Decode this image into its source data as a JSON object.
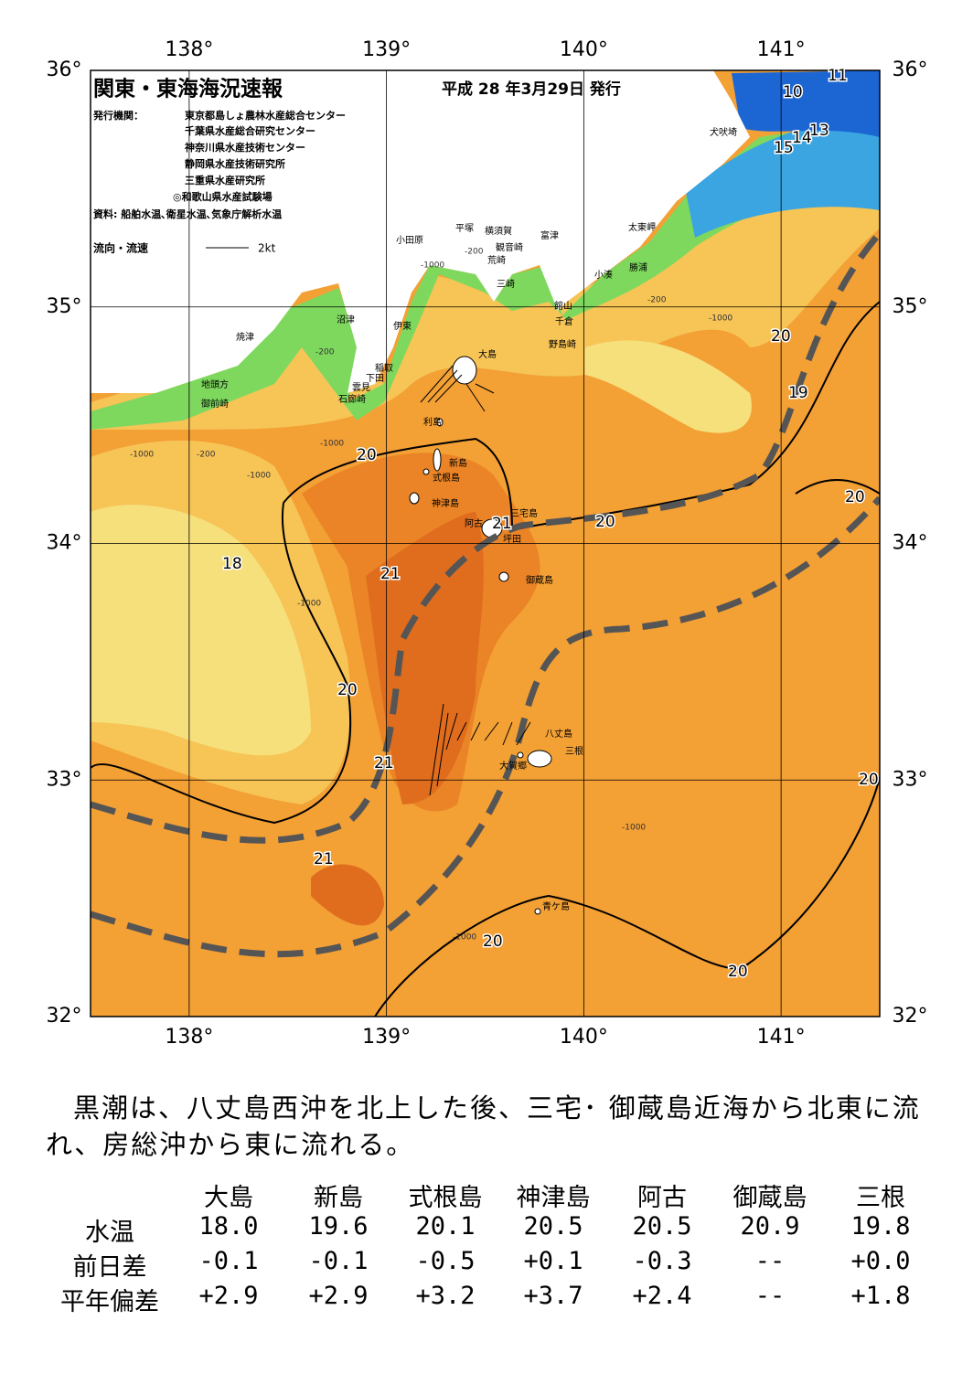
{
  "header": {
    "title": "関東・東海海況速報",
    "date": "平成 28 年3月29日 発行",
    "issuer_label": "発行機関：",
    "issuers": [
      "東京都島しょ農林水産総合センター",
      "千葉県水産総合研究センター",
      "神奈川県水産技術センター",
      "静岡県水産技術研究所",
      "三重県水産研究所",
      "◎和歌山県水産試験場"
    ],
    "source": "資料: 船舶水温､衛星水温､気象庁解析水温",
    "legend_label": "流向・流速",
    "legend_speed": "2kt"
  },
  "map": {
    "lonlim": [
      137.5,
      141.5
    ],
    "latlim": [
      32,
      36
    ],
    "lon_ticks": [
      {
        "value": 138,
        "label": "138°"
      },
      {
        "value": 139,
        "label": "139°"
      },
      {
        "value": 140,
        "label": "140°"
      },
      {
        "value": 141,
        "label": "141°"
      }
    ],
    "lat_ticks": [
      {
        "value": 32,
        "label": "32°"
      },
      {
        "value": 33,
        "label": "33°"
      },
      {
        "value": 34,
        "label": "34°"
      },
      {
        "value": 35,
        "label": "35°"
      },
      {
        "value": 36,
        "label": "36°"
      }
    ],
    "isotherm_labels": [
      "10",
      "11",
      "13",
      "14",
      "15",
      "20",
      "19",
      "20",
      "20",
      "21",
      "20",
      "18",
      "21",
      "20",
      "21",
      "20",
      "21",
      "20",
      "20"
    ],
    "depth_labels": [
      "-200",
      "-1000",
      "-200",
      "-1000",
      "-200",
      "-1000",
      "-1000",
      "-200",
      "-1000",
      "-1000",
      "-1000",
      "-1000"
    ],
    "places": [
      "犬吠埼",
      "太東岬",
      "勝浦",
      "小湊",
      "富津",
      "横須賀",
      "平塚",
      "観音崎",
      "荒崎",
      "小田原",
      "三崎",
      "館山",
      "千倉",
      "野島崎",
      "沼津",
      "伊東",
      "焼津",
      "稲取",
      "下田",
      "雲見",
      "石廊崎",
      "地頭方",
      "御前崎",
      "大島",
      "利島",
      "新島",
      "式根島",
      "神津島",
      "三宅島",
      "阿古",
      "坪田",
      "御蔵島",
      "八丈島",
      "三根",
      "大賀郷",
      "青ケ島"
    ]
  },
  "summary": "黒潮は、八丈島西沖を北上した後、三宅･ 御蔵島近海から北東に流れ、房総沖から東に流れる。",
  "table": {
    "columns": [
      "大島",
      "新島",
      "式根島",
      "神津島",
      "阿古",
      "御蔵島",
      "三根"
    ],
    "rows": [
      [
        "水温",
        "18.0",
        "19.6",
        "20.1",
        "20.5",
        "20.5",
        "20.9",
        "19.8"
      ],
      [
        "前日差",
        "-0.1",
        "-0.1",
        "-0.5",
        "+0.1",
        "-0.3",
        "--",
        "+0.0"
      ],
      [
        "平年偏差",
        "+2.9",
        "+2.9",
        "+3.2",
        "+3.7",
        "+2.4",
        "--",
        "+1.8"
      ]
    ]
  }
}
